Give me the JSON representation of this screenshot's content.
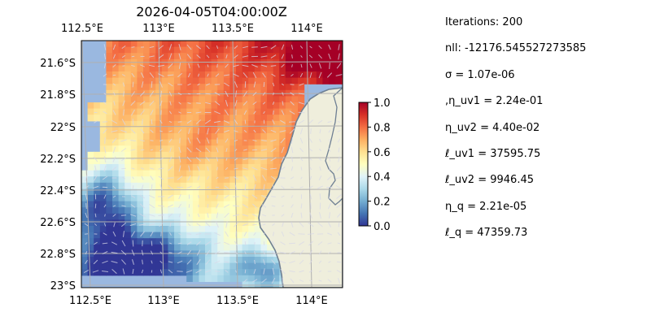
{
  "map": {
    "title": "2026-04-05T04:00:00Z",
    "x_ticks": [
      "112.5°E",
      "113°E",
      "113.5°E",
      "114°E"
    ],
    "y_ticks": [
      "21.6°S",
      "21.8°S",
      "22°S",
      "22.2°S",
      "22.4°S",
      "22.6°S",
      "22.8°S",
      "23°S"
    ],
    "lon_range": [
      112.5,
      114.2
    ],
    "lat_range": [
      -23.0,
      -21.45
    ],
    "colors": {
      "ocean_background": "#9ab8e0",
      "land": "#efeedc",
      "coastline": "#6e7f93",
      "gridlines": "#b0b0b0",
      "vectors": "#d8d8e8",
      "colormap": [
        "#313695",
        "#4575b4",
        "#74add1",
        "#abd9e9",
        "#e0f3f8",
        "#ffffbf",
        "#fee090",
        "#fdae61",
        "#f46d43",
        "#d73027",
        "#a50026"
      ]
    }
  },
  "colorbar": {
    "ticks": [
      "0.0",
      "0.2",
      "0.4",
      "0.6",
      "0.8",
      "1.0"
    ],
    "range": [
      0,
      1
    ]
  },
  "params": [
    "Iterations: 200",
    "nll: -12176.545527273585",
    "σ = 1.07e-06",
    ",η_uv1 = 2.24e-01",
    "η_uv2 = 4.40e-02",
    "ℓ_uv1 = 37595.75",
    "ℓ_uv2 = 9946.45",
    "η_q = 2.21e-05",
    "ℓ_q = 47359.73"
  ]
}
